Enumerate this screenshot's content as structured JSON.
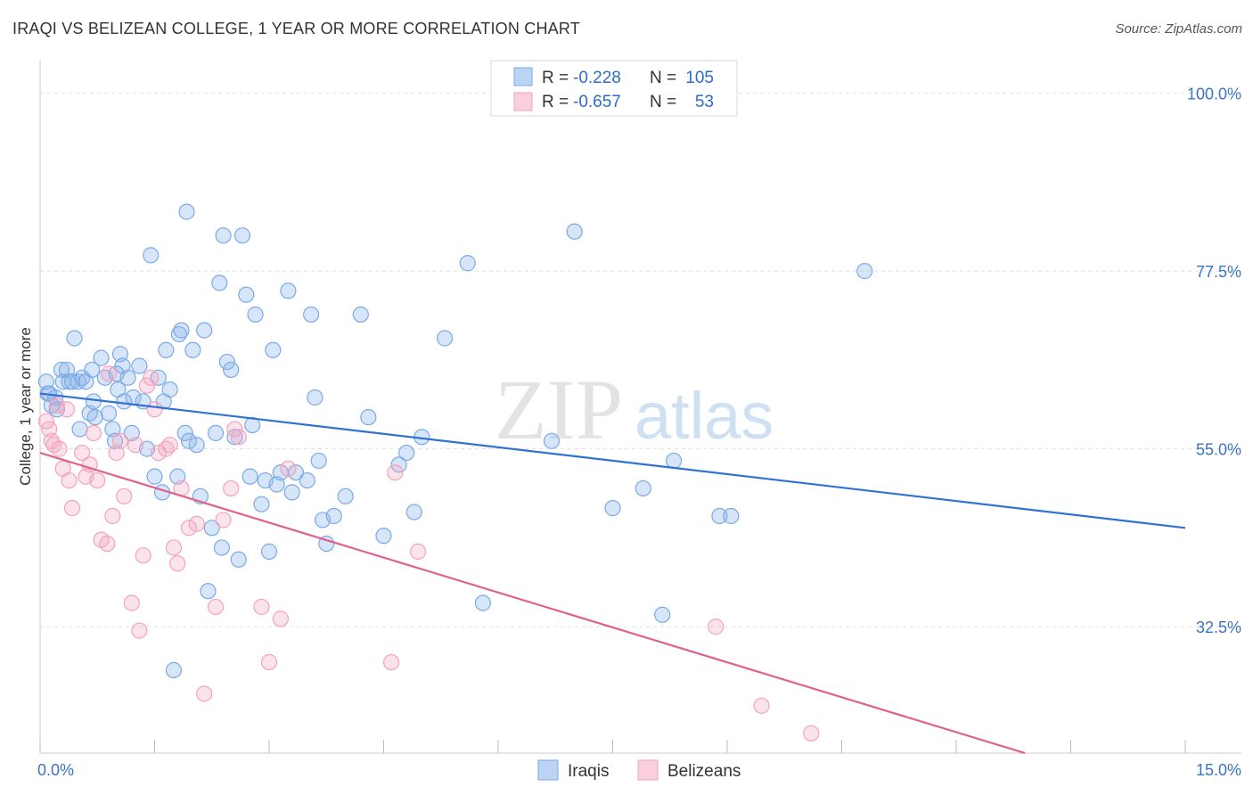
{
  "title": "IRAQI VS BELIZEAN COLLEGE, 1 YEAR OR MORE CORRELATION CHART",
  "source": "Source: ZipAtlas.com",
  "watermark": {
    "part1": "ZIP",
    "part2": "atlas"
  },
  "chart_data": {
    "type": "scatter",
    "xlabel": "",
    "ylabel": "College, 1 year or more",
    "xlim": [
      0,
      15
    ],
    "ylim": [
      16.5,
      103
    ],
    "x_tick_labels": [
      "0.0%",
      "15.0%"
    ],
    "y_ticks": [
      100.0,
      77.5,
      55.0,
      32.5
    ],
    "y_tick_labels": [
      "100.0%",
      "77.5%",
      "55.0%",
      "32.5%"
    ],
    "legend": {
      "rows": [
        {
          "r_label": "R =",
          "r_value": "-0.228",
          "n_label": "N =",
          "n_value": "105"
        },
        {
          "r_label": "R =",
          "r_value": "-0.657",
          "n_label": "N =",
          "n_value": "53"
        }
      ]
    },
    "series": [
      {
        "name": "Iraqis",
        "color": "#7aaae6",
        "line_color": "#2f72d1",
        "trend": {
          "x0": 0,
          "y0": 62.0,
          "x1": 15,
          "y1": 45.0
        },
        "points": [
          [
            0.08,
            63.5
          ],
          [
            0.1,
            62.0
          ],
          [
            0.15,
            60.5
          ],
          [
            0.2,
            61.5
          ],
          [
            0.22,
            60.0
          ],
          [
            0.28,
            65.0
          ],
          [
            0.3,
            63.5
          ],
          [
            0.35,
            65.0
          ],
          [
            0.38,
            63.5
          ],
          [
            0.45,
            69.0
          ],
          [
            0.5,
            63.5
          ],
          [
            0.52,
            57.5
          ],
          [
            0.55,
            64.0
          ],
          [
            0.6,
            63.5
          ],
          [
            0.65,
            59.5
          ],
          [
            0.68,
            65.0
          ],
          [
            0.7,
            61.0
          ],
          [
            0.72,
            59.0
          ],
          [
            0.8,
            66.5
          ],
          [
            0.85,
            64.0
          ],
          [
            0.9,
            59.5
          ],
          [
            0.95,
            57.5
          ],
          [
            0.98,
            56.0
          ],
          [
            1.02,
            62.5
          ],
          [
            1.05,
            67.0
          ],
          [
            1.08,
            65.5
          ],
          [
            1.1,
            61.0
          ],
          [
            1.15,
            64.0
          ],
          [
            1.2,
            57.0
          ],
          [
            1.22,
            61.5
          ],
          [
            1.3,
            65.5
          ],
          [
            1.35,
            61.0
          ],
          [
            1.4,
            55.0
          ],
          [
            1.45,
            79.5
          ],
          [
            1.5,
            51.5
          ],
          [
            1.55,
            64.0
          ],
          [
            1.6,
            49.5
          ],
          [
            1.62,
            61.0
          ],
          [
            1.65,
            67.5
          ],
          [
            1.7,
            62.5
          ],
          [
            1.75,
            27.0
          ],
          [
            1.8,
            51.5
          ],
          [
            1.82,
            69.5
          ],
          [
            1.85,
            70.0
          ],
          [
            1.9,
            57.0
          ],
          [
            1.92,
            85.0
          ],
          [
            1.95,
            56.0
          ],
          [
            2.0,
            67.5
          ],
          [
            2.05,
            55.5
          ],
          [
            2.1,
            49.0
          ],
          [
            2.15,
            70.0
          ],
          [
            2.2,
            37.0
          ],
          [
            2.25,
            45.0
          ],
          [
            2.3,
            57.0
          ],
          [
            2.35,
            76.0
          ],
          [
            2.38,
            42.5
          ],
          [
            2.4,
            82.0
          ],
          [
            2.45,
            66.0
          ],
          [
            2.5,
            65.0
          ],
          [
            2.55,
            56.5
          ],
          [
            2.6,
            41.0
          ],
          [
            2.65,
            82.0
          ],
          [
            2.7,
            74.5
          ],
          [
            2.75,
            51.5
          ],
          [
            2.78,
            58.0
          ],
          [
            2.82,
            72.0
          ],
          [
            2.9,
            48.0
          ],
          [
            2.95,
            51.0
          ],
          [
            3.0,
            42.0
          ],
          [
            3.05,
            67.5
          ],
          [
            3.1,
            50.5
          ],
          [
            3.15,
            52.0
          ],
          [
            3.25,
            75.0
          ],
          [
            3.3,
            49.5
          ],
          [
            3.35,
            52.0
          ],
          [
            3.5,
            51.0
          ],
          [
            3.55,
            72.0
          ],
          [
            3.6,
            61.5
          ],
          [
            3.65,
            53.5
          ],
          [
            3.7,
            46.0
          ],
          [
            3.75,
            43.0
          ],
          [
            3.85,
            46.5
          ],
          [
            4.0,
            49.0
          ],
          [
            4.2,
            72.0
          ],
          [
            4.3,
            59.0
          ],
          [
            4.5,
            44.0
          ],
          [
            4.7,
            53.0
          ],
          [
            4.8,
            54.5
          ],
          [
            4.9,
            47.0
          ],
          [
            5.0,
            56.5
          ],
          [
            5.3,
            69.0
          ],
          [
            5.6,
            78.5
          ],
          [
            5.8,
            35.5
          ],
          [
            6.7,
            56.0
          ],
          [
            7.0,
            82.5
          ],
          [
            7.5,
            47.5
          ],
          [
            7.9,
            50.0
          ],
          [
            8.15,
            34.0
          ],
          [
            8.3,
            53.5
          ],
          [
            8.9,
            46.5
          ],
          [
            9.05,
            46.5
          ],
          [
            10.8,
            77.5
          ],
          [
            0.12,
            62.0
          ],
          [
            0.42,
            63.5
          ],
          [
            1.0,
            64.5
          ]
        ]
      },
      {
        "name": "Belizeans",
        "color": "#f3a3be",
        "line_color": "#e0608e",
        "trend": {
          "x0": 0,
          "y0": 54.5,
          "x1": 12.9,
          "y1": 16.5
        },
        "points": [
          [
            0.08,
            58.5
          ],
          [
            0.12,
            57.5
          ],
          [
            0.15,
            56.0
          ],
          [
            0.18,
            55.5
          ],
          [
            0.22,
            60.5
          ],
          [
            0.25,
            55.0
          ],
          [
            0.3,
            52.5
          ],
          [
            0.35,
            60.0
          ],
          [
            0.38,
            51.0
          ],
          [
            0.42,
            47.5
          ],
          [
            0.55,
            54.5
          ],
          [
            0.6,
            51.5
          ],
          [
            0.65,
            53.0
          ],
          [
            0.7,
            57.0
          ],
          [
            0.75,
            51.0
          ],
          [
            0.8,
            43.5
          ],
          [
            0.88,
            43.0
          ],
          [
            0.95,
            46.5
          ],
          [
            1.0,
            54.5
          ],
          [
            1.05,
            56.0
          ],
          [
            1.1,
            49.0
          ],
          [
            1.2,
            35.5
          ],
          [
            1.25,
            55.5
          ],
          [
            1.3,
            32.0
          ],
          [
            1.35,
            41.5
          ],
          [
            1.4,
            63.0
          ],
          [
            1.45,
            64.0
          ],
          [
            1.5,
            60.0
          ],
          [
            1.55,
            54.5
          ],
          [
            1.65,
            55.0
          ],
          [
            1.7,
            55.5
          ],
          [
            1.75,
            42.5
          ],
          [
            1.8,
            40.5
          ],
          [
            1.85,
            50.0
          ],
          [
            1.95,
            45.0
          ],
          [
            2.05,
            45.5
          ],
          [
            2.15,
            24.0
          ],
          [
            2.3,
            35.0
          ],
          [
            2.4,
            46.0
          ],
          [
            2.5,
            50.0
          ],
          [
            2.55,
            57.5
          ],
          [
            2.6,
            56.5
          ],
          [
            2.9,
            35.0
          ],
          [
            3.0,
            28.0
          ],
          [
            3.15,
            33.5
          ],
          [
            3.25,
            52.5
          ],
          [
            4.6,
            28.0
          ],
          [
            4.65,
            52.0
          ],
          [
            4.95,
            42.0
          ],
          [
            8.85,
            32.5
          ],
          [
            9.45,
            22.5
          ],
          [
            10.1,
            19.0
          ],
          [
            0.9,
            64.5
          ]
        ]
      }
    ]
  },
  "bottom_legend": {
    "items": [
      "Iraqis",
      "Belizeans"
    ]
  }
}
